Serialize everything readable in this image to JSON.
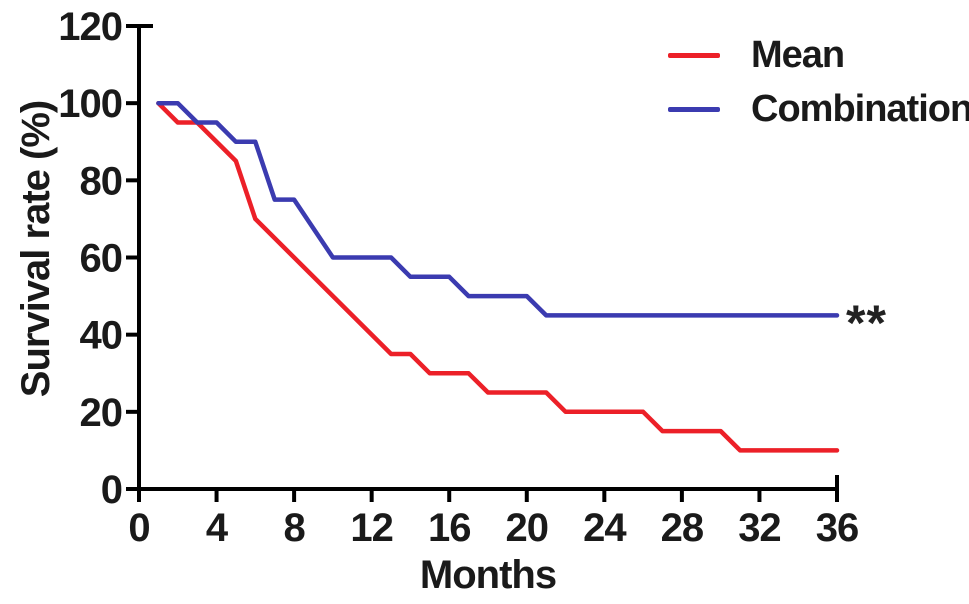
{
  "figure": {
    "background": "#ffffff",
    "text_color": "#1a1a1a",
    "axis_color": "#000000"
  },
  "chart_data": {
    "type": "line",
    "subtype": "kaplan-meier-survival-curve",
    "title": "",
    "xlabel": "Months",
    "ylabel": "Survival rate (%)",
    "xlim": [
      0,
      36
    ],
    "ylim": [
      0,
      120
    ],
    "x_ticks": [
      0,
      4,
      8,
      12,
      16,
      20,
      24,
      28,
      32,
      36
    ],
    "y_ticks": [
      0,
      20,
      40,
      60,
      80,
      100,
      120
    ],
    "grid": false,
    "legend_position": "top-right",
    "annotation": "**",
    "series": [
      {
        "name": "Mean",
        "color": "#EC2028",
        "points": [
          [
            1,
            100
          ],
          [
            2,
            95
          ],
          [
            3,
            95
          ],
          [
            5,
            85
          ],
          [
            6,
            70
          ],
          [
            13,
            35
          ],
          [
            14,
            35
          ],
          [
            15,
            30
          ],
          [
            17,
            30
          ],
          [
            18,
            25
          ],
          [
            21,
            25
          ],
          [
            22,
            20
          ],
          [
            26,
            20
          ],
          [
            27,
            15
          ],
          [
            30,
            15
          ],
          [
            31,
            10
          ],
          [
            36,
            10
          ]
        ]
      },
      {
        "name": "Combination",
        "color": "#3B3BB0",
        "points": [
          [
            1,
            100
          ],
          [
            2,
            100
          ],
          [
            3,
            95
          ],
          [
            4,
            95
          ],
          [
            5,
            90
          ],
          [
            6,
            90
          ],
          [
            7,
            75
          ],
          [
            8,
            75
          ],
          [
            10,
            60
          ],
          [
            13,
            60
          ],
          [
            14,
            55
          ],
          [
            16,
            55
          ],
          [
            17,
            50
          ],
          [
            20,
            50
          ],
          [
            21,
            45
          ],
          [
            36,
            45
          ]
        ]
      }
    ]
  }
}
